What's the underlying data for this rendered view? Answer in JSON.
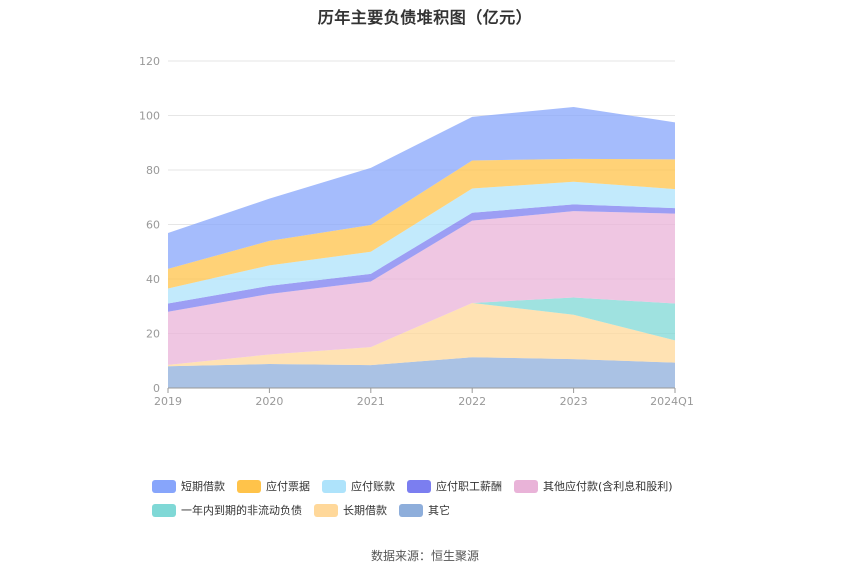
{
  "chart_data": {
    "type": "area",
    "stacked": true,
    "title": "历年主要负债堆积图（亿元）",
    "x": [
      "2019",
      "2020",
      "2021",
      "2022",
      "2023",
      "2024Q1"
    ],
    "ylim": [
      0,
      120
    ],
    "yticks": [
      0,
      20,
      40,
      60,
      80,
      100,
      120
    ],
    "grid": true,
    "legend_position": "bottom",
    "series": [
      {
        "name": "其它",
        "color": "#8eaedb",
        "values": [
          8.0,
          8.8,
          8.4,
          11.3,
          10.6,
          9.3
        ]
      },
      {
        "name": "长期借款",
        "color": "#ffd89a",
        "values": [
          0.5,
          3.5,
          6.6,
          19.9,
          16.3,
          8.2
        ]
      },
      {
        "name": "一年内到期的非流动负债",
        "color": "#7fd8d6",
        "values": [
          0.0,
          0.0,
          0.0,
          0.0,
          6.3,
          13.5
        ]
      },
      {
        "name": "其他应付款(含利息和股利)",
        "color": "#e9b3d8",
        "values": [
          19.5,
          22.2,
          24.1,
          30.2,
          31.7,
          33.0
        ]
      },
      {
        "name": "应付职工薪酬",
        "color": "#7b7ef0",
        "values": [
          3.0,
          3.0,
          2.8,
          2.9,
          2.5,
          2.0
        ]
      },
      {
        "name": "应付账款",
        "color": "#aee3fb",
        "values": [
          5.5,
          7.5,
          8.1,
          8.9,
          8.3,
          7.0
        ]
      },
      {
        "name": "应付票据",
        "color": "#ffc34a",
        "values": [
          7.2,
          9.0,
          9.8,
          10.3,
          8.4,
          10.9
        ]
      },
      {
        "name": "短期借款",
        "color": "#87a5fb",
        "values": [
          13.2,
          15.5,
          21.0,
          16.0,
          19.0,
          13.6
        ]
      }
    ],
    "legend_order": [
      "短期借款",
      "应付票据",
      "应付账款",
      "应付职工薪酬",
      "其他应付款(含利息和股利)",
      "一年内到期的非流动负债",
      "长期借款",
      "其它"
    ]
  },
  "source_note": "数据来源：恒生聚源"
}
